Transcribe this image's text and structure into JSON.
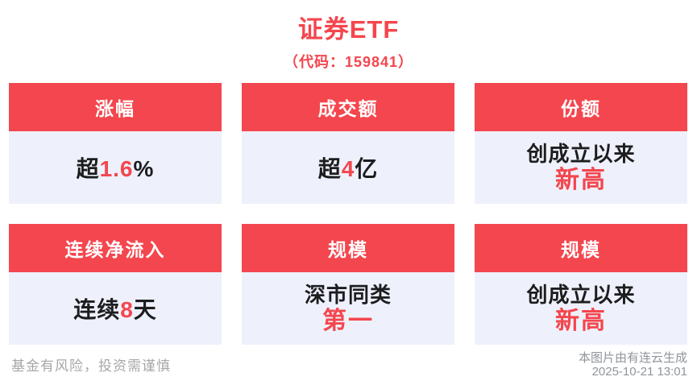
{
  "colors": {
    "accent": "#f4464e",
    "card_body_bg": "#eef1fb",
    "text_dark": "#1d1d1f",
    "footer_gray": "#a7a7a7",
    "credit_gray": "#8f959c"
  },
  "header": {
    "title": "证券ETF",
    "subtitle": "（代码：159841）"
  },
  "cards": [
    {
      "header": "涨幅",
      "prefix": "超",
      "value": "1.6",
      "suffix": "%"
    },
    {
      "header": "成交额",
      "prefix": "超",
      "value": "4",
      "suffix": "亿"
    },
    {
      "header": "份额",
      "line1": "创成立以来",
      "line2": "新高"
    },
    {
      "header": "连续净流入",
      "prefix": "连续",
      "value": "8",
      "suffix": "天"
    },
    {
      "header": "规模",
      "line1": "深市同类",
      "line2": "第一"
    },
    {
      "header": "规模",
      "line1": "创成立以来",
      "line2": "新高"
    }
  ],
  "footer": {
    "disclaimer": "基金有风险，投资需谨慎",
    "credit": "本图片由有连云生成",
    "timestamp": "2025-10-21 13:01"
  }
}
